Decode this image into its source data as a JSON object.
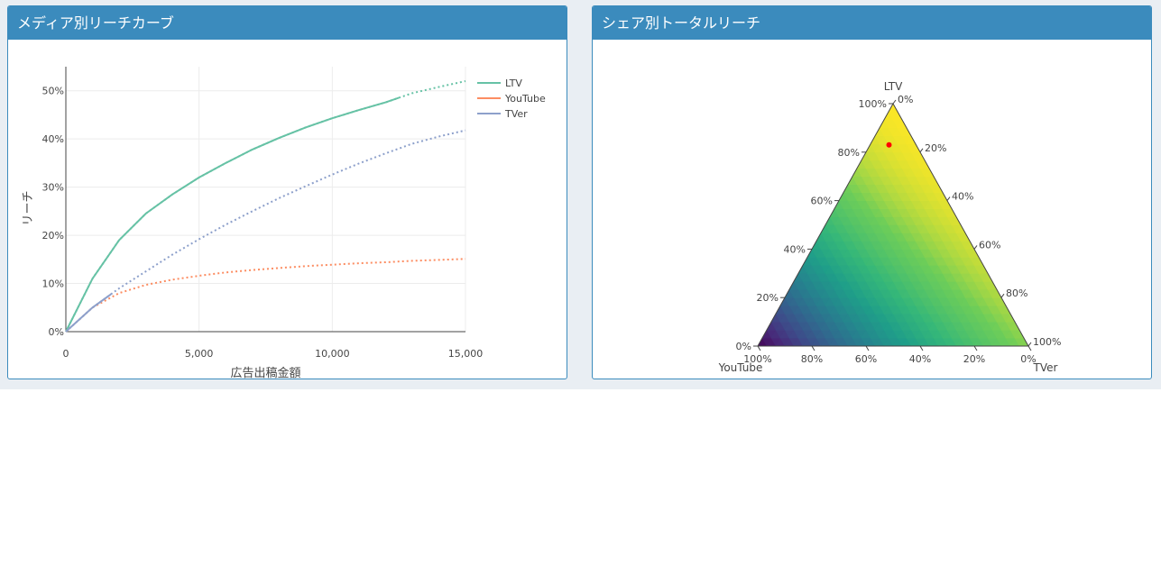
{
  "panels": {
    "left": {
      "title": "メディア別リーチカーブ"
    },
    "right": {
      "title": "シェア別トータルリーチ"
    }
  },
  "colors": {
    "header": "#3b8bbd",
    "ltv": "#66c2a5",
    "youtube": "#fc8d62",
    "tver": "#8da0cb",
    "marker": "#ff0000"
  },
  "chart_data": [
    {
      "type": "line",
      "xlabel": "広告出稿金額",
      "ylabel": "リーチ",
      "xlim": [
        0,
        15000
      ],
      "ylim": [
        0,
        0.55
      ],
      "x_ticks": [
        0,
        5000,
        10000,
        15000
      ],
      "x_tick_labels": [
        "0",
        "5,000",
        "10,000",
        "15,000"
      ],
      "y_ticks": [
        0,
        0.1,
        0.2,
        0.3,
        0.4,
        0.5
      ],
      "y_tick_labels": [
        "0%",
        "10%",
        "20%",
        "30%",
        "40%",
        "50%"
      ],
      "grid": true,
      "legend": "top-right",
      "series": [
        {
          "name": "LTV",
          "color": "#66c2a5",
          "solid_until": 12500,
          "x": [
            0,
            1000,
            2000,
            3000,
            4000,
            5000,
            6000,
            7000,
            8000,
            9000,
            10000,
            11000,
            12000,
            13000,
            14000,
            15000
          ],
          "y": [
            0,
            0.11,
            0.19,
            0.245,
            0.285,
            0.32,
            0.35,
            0.378,
            0.402,
            0.424,
            0.443,
            0.46,
            0.476,
            0.495,
            0.508,
            0.52
          ]
        },
        {
          "name": "YouTube",
          "color": "#fc8d62",
          "solid_until": 0,
          "x": [
            0,
            1000,
            2000,
            3000,
            4000,
            5000,
            6000,
            7000,
            8000,
            9000,
            10000,
            11000,
            12000,
            13000,
            14000,
            15000
          ],
          "y": [
            0,
            0.05,
            0.08,
            0.097,
            0.108,
            0.116,
            0.123,
            0.128,
            0.132,
            0.136,
            0.139,
            0.142,
            0.144,
            0.147,
            0.149,
            0.151
          ]
        },
        {
          "name": "TVer",
          "color": "#8da0cb",
          "solid_until": 1700,
          "x": [
            0,
            1000,
            2000,
            3000,
            4000,
            5000,
            6000,
            7000,
            8000,
            9000,
            10000,
            11000,
            12000,
            13000,
            14000,
            15000
          ],
          "y": [
            0,
            0.05,
            0.09,
            0.125,
            0.16,
            0.192,
            0.222,
            0.25,
            0.277,
            0.302,
            0.326,
            0.349,
            0.37,
            0.39,
            0.405,
            0.418
          ]
        }
      ]
    },
    {
      "type": "heatmap",
      "subtype": "ternary",
      "axes": {
        "a": "LTV",
        "b": "YouTube",
        "c": "TVer"
      },
      "tick_labels": [
        "0%",
        "20%",
        "40%",
        "60%",
        "80%",
        "100%"
      ],
      "colorscale": "viridis",
      "marker": {
        "a": 0.83,
        "b": 0.1,
        "c": 0.07
      }
    }
  ]
}
